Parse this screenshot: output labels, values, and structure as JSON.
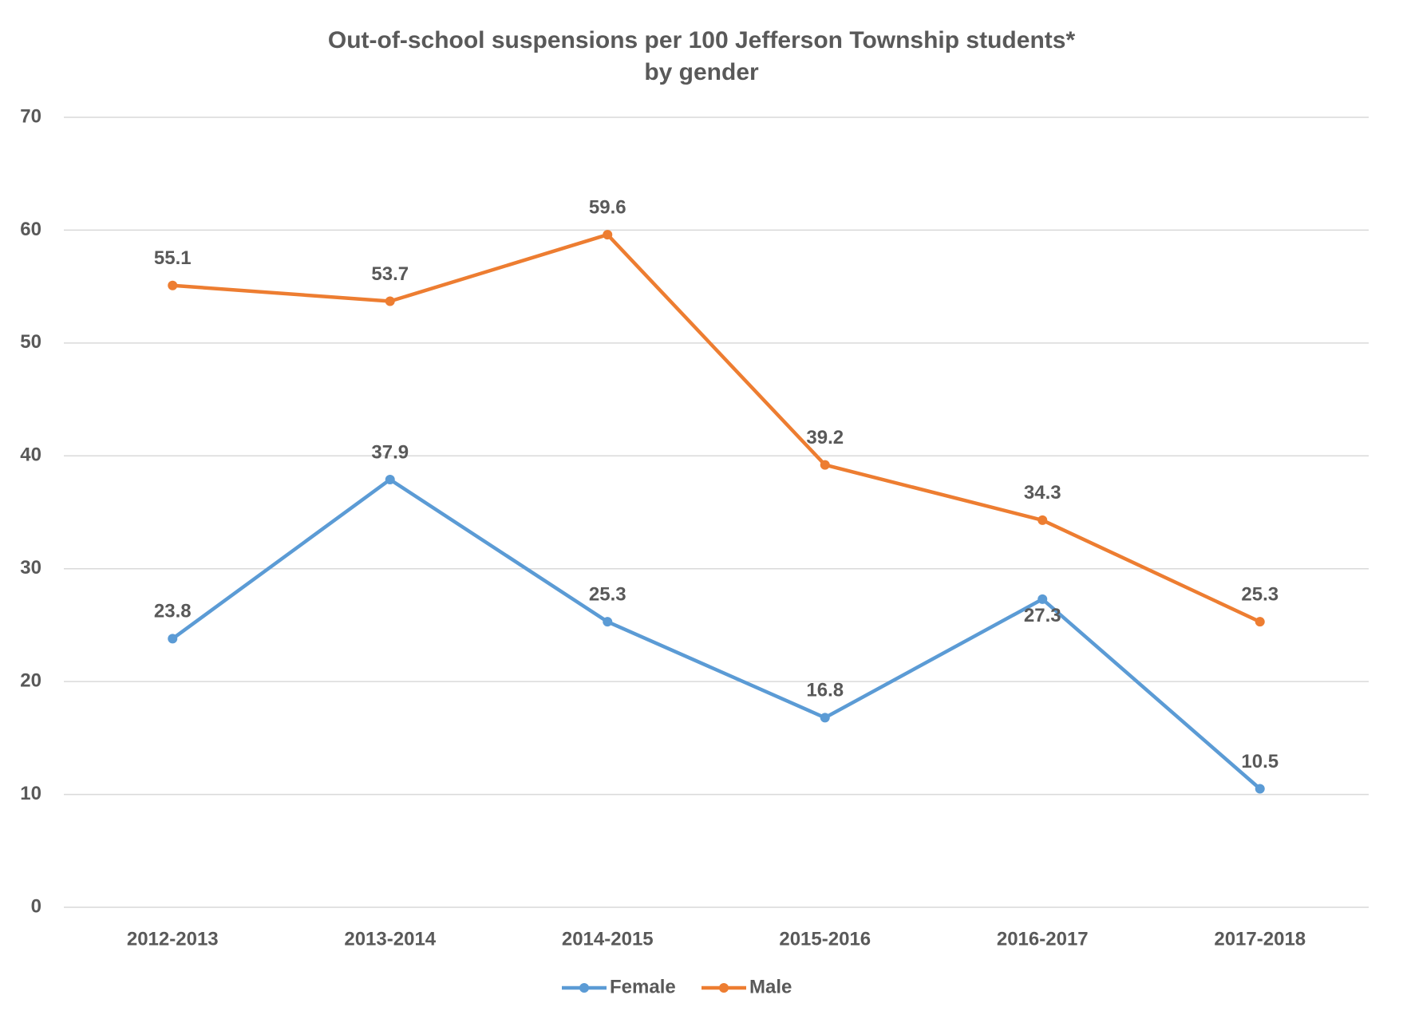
{
  "chart_data": {
    "type": "line",
    "title": "Out-of-school suspensions per 100 Jefferson Township students*",
    "subtitle": "by gender",
    "categories": [
      "2012-2013",
      "2013-2014",
      "2014-2015",
      "2015-2016",
      "2016-2017",
      "2017-2018"
    ],
    "series": [
      {
        "name": "Female",
        "color": "#5b9bd5",
        "values": [
          23.8,
          37.9,
          25.3,
          16.8,
          27.3,
          10.5
        ]
      },
      {
        "name": "Male",
        "color": "#ed7d31",
        "values": [
          55.1,
          53.7,
          59.6,
          39.2,
          34.3,
          25.3
        ]
      }
    ],
    "ylim": [
      0,
      70
    ],
    "yticks": [
      0,
      10,
      20,
      30,
      40,
      50,
      60,
      70
    ],
    "grid": true,
    "legend": "bottom"
  }
}
